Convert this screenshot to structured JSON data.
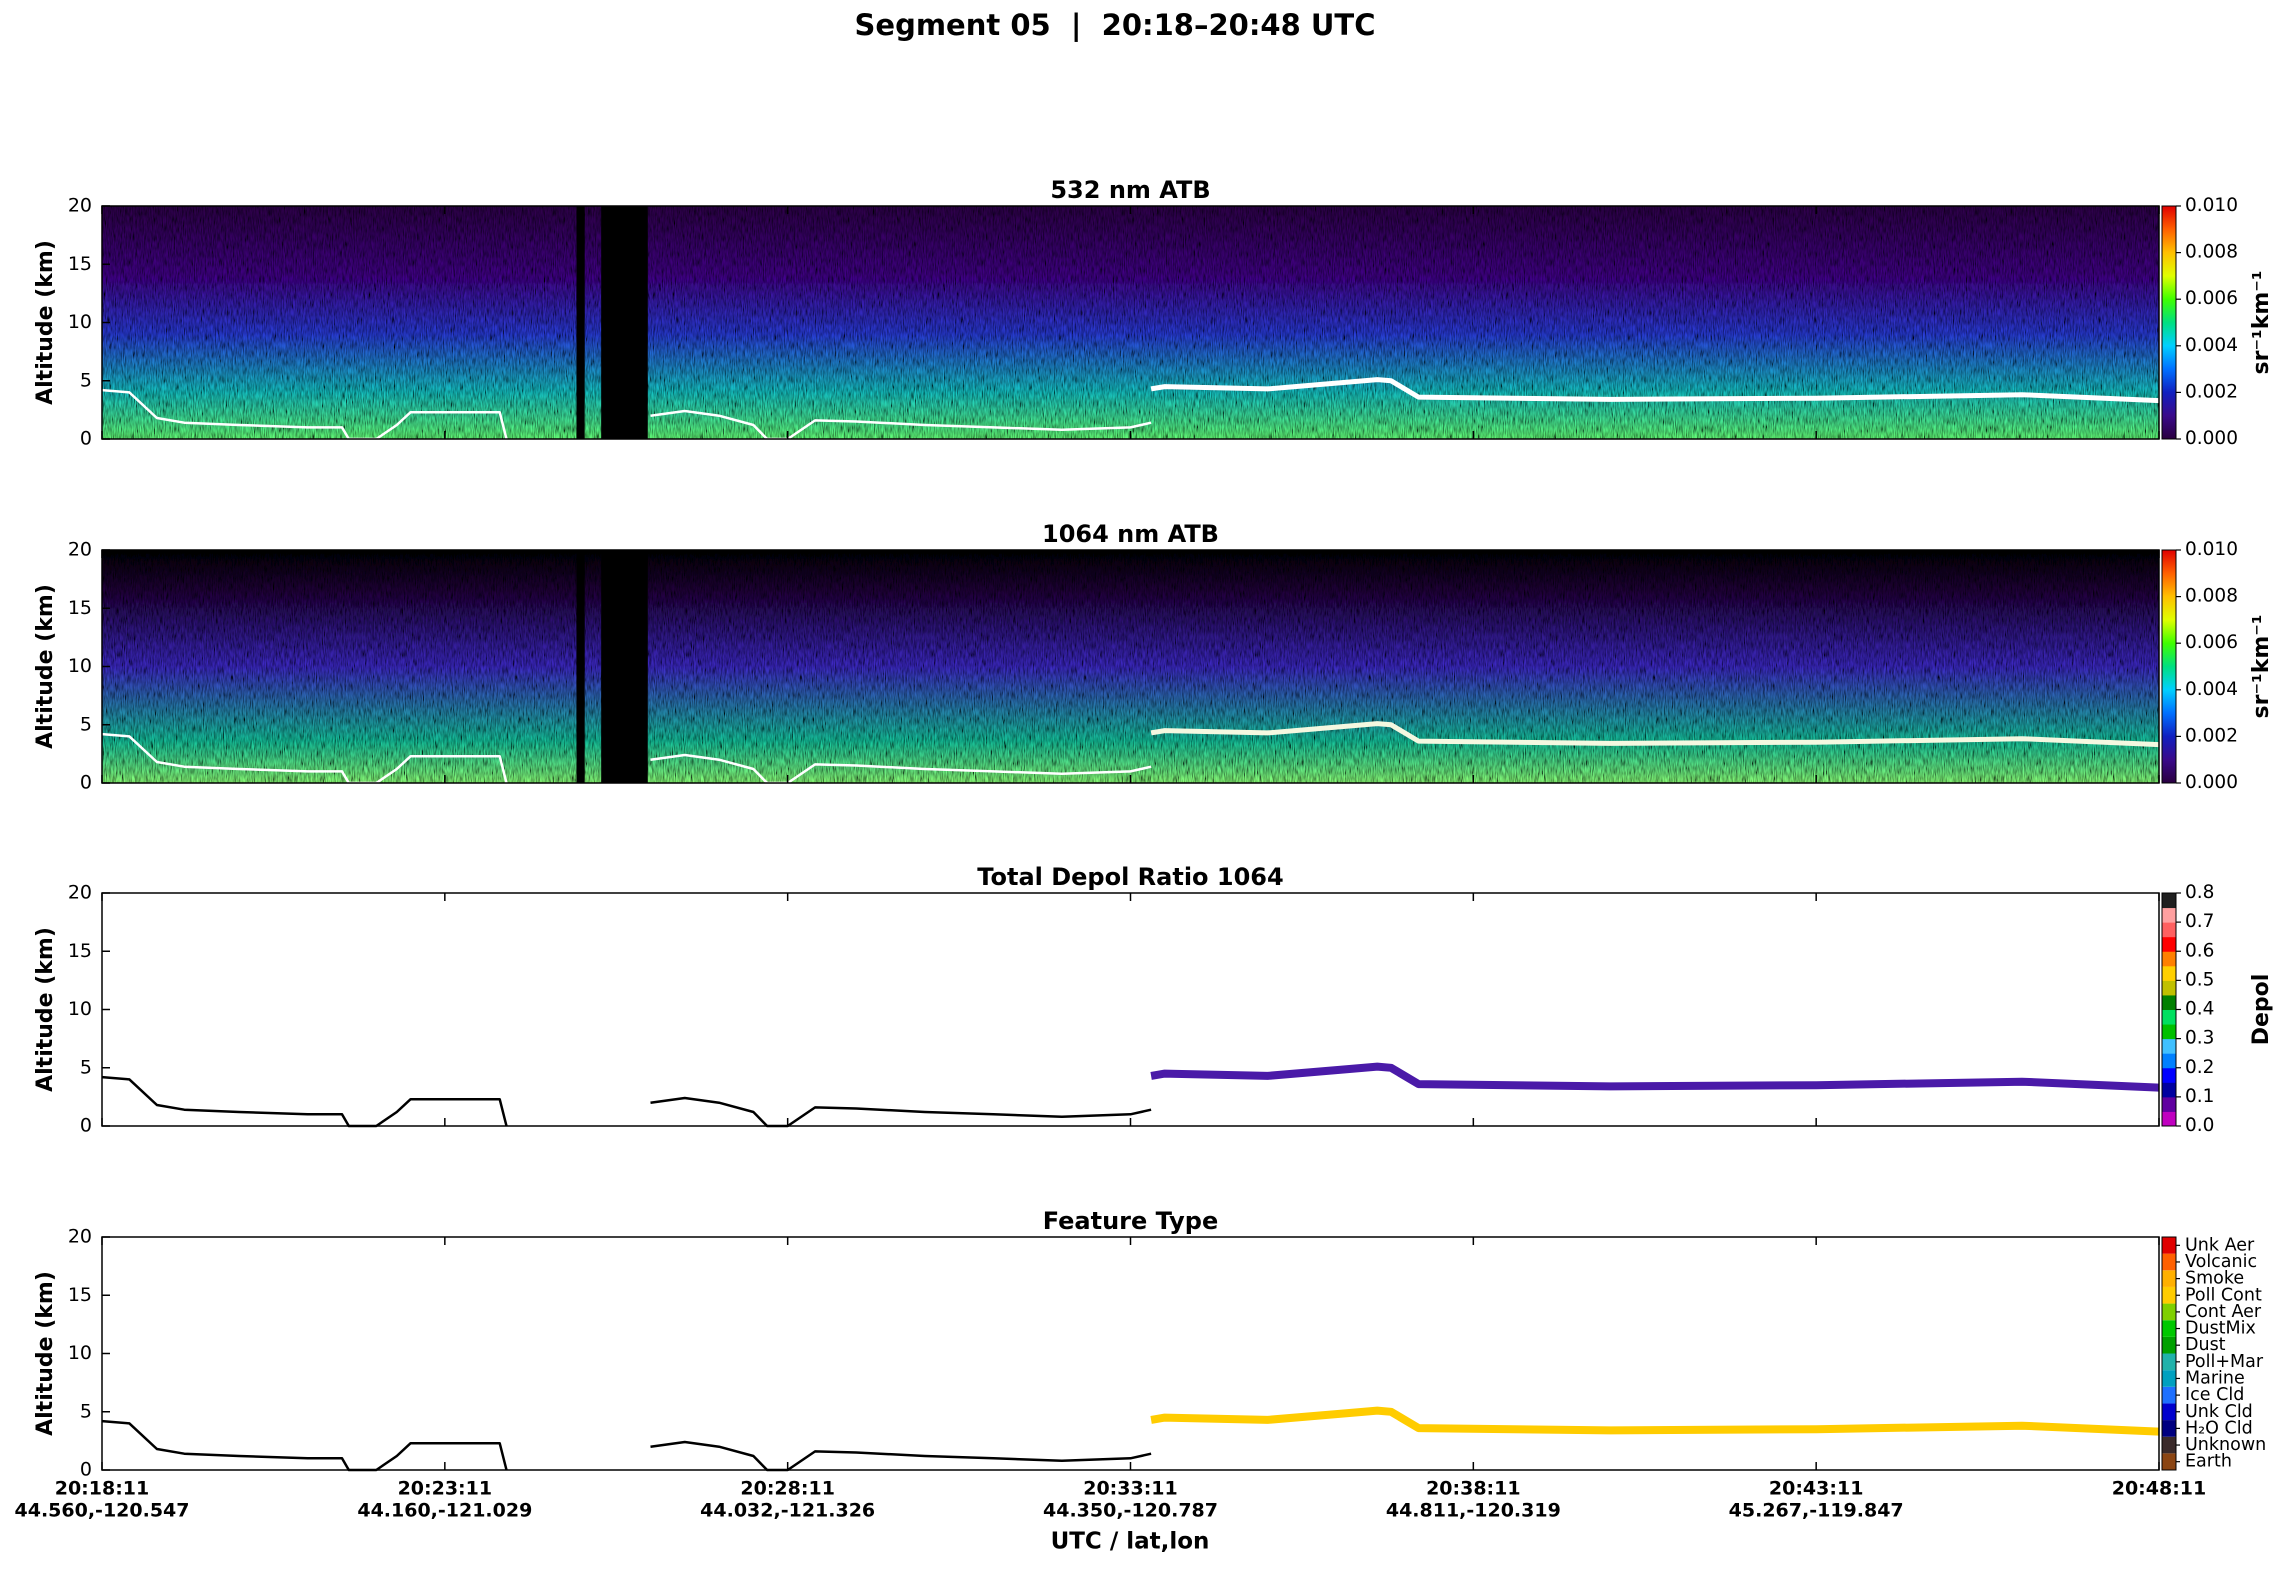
{
  "title": "Segment 05  |  20:18–20:48 UTC",
  "xlabel": "UTC / lat,lon",
  "chart_data": [
    {
      "type": "heatmap",
      "title": "532 nm ATB",
      "ylabel": "Altitude (km)",
      "xlim": [
        0,
        30
      ],
      "ylim": [
        0,
        20
      ],
      "yticks": [
        0,
        5,
        10,
        15,
        20
      ],
      "xticks": [
        0,
        5,
        10,
        15,
        20,
        25,
        30
      ],
      "no_data_x": [
        [
          6.92,
          7.04
        ],
        [
          7.28,
          7.96
        ]
      ],
      "surface": {
        "color": "#ffffff",
        "x": [
          0,
          0.4,
          0.8,
          1.2,
          2,
          3,
          3.5,
          3.6,
          4.0,
          4.3,
          4.5,
          5.8,
          5.9,
          7,
          8.0,
          8.5,
          9.0,
          9.5,
          9.7,
          10.0,
          10.4,
          11,
          12,
          13,
          14,
          15,
          15.3
        ],
        "y": [
          4.2,
          4.0,
          1.8,
          1.4,
          1.2,
          1.0,
          1.0,
          0,
          0,
          1.2,
          2.3,
          2.3,
          0,
          null,
          2.0,
          2.4,
          2.0,
          1.2,
          0,
          0,
          1.6,
          1.5,
          1.2,
          1.0,
          0.8,
          1.0,
          1.4
        ]
      },
      "layer": {
        "color": "#ffffff",
        "x": [
          15.3,
          15.5,
          17,
          18,
          18.6,
          18.8,
          19.2,
          22,
          25,
          28,
          30
        ],
        "y": [
          4.3,
          4.5,
          4.3,
          4.8,
          5.1,
          5.0,
          3.6,
          3.4,
          3.5,
          3.8,
          3.3
        ]
      },
      "colorbar": {
        "label": "sr⁻¹km⁻¹",
        "colormap": "continuous",
        "lim": [
          0,
          0.01
        ],
        "ticks": [
          {
            "value": 0,
            "label": "0.000"
          },
          0.002,
          0.004,
          0.006,
          0.008,
          {
            "value": 0.01,
            "label": "0.010"
          }
        ],
        "colors": [
          "#2a0040",
          "#3a0a8a",
          "#1020c0",
          "#0070ff",
          "#00d0ff",
          "#00e080",
          "#40ff00",
          "#e0ff00",
          "#ffc000",
          "#ff6000",
          "#e00000"
        ]
      }
    },
    {
      "type": "heatmap",
      "title": "1064 nm ATB",
      "ylabel": "Altitude (km)",
      "xlim": [
        0,
        30
      ],
      "ylim": [
        0,
        20
      ],
      "yticks": [
        0,
        5,
        10,
        15,
        20
      ],
      "xticks": [
        0,
        5,
        10,
        15,
        20,
        25,
        30
      ],
      "no_data_x": [
        [
          6.92,
          7.04
        ],
        [
          7.28,
          7.96
        ]
      ],
      "surface": {
        "color": "#ffffff",
        "x": [
          0,
          0.4,
          0.8,
          1.2,
          2,
          3,
          3.5,
          3.6,
          4.0,
          4.3,
          4.5,
          5.8,
          5.9,
          7,
          8.0,
          8.5,
          9.0,
          9.5,
          9.7,
          10.0,
          10.4,
          11,
          12,
          13,
          14,
          15,
          15.3
        ],
        "y": [
          4.2,
          4.0,
          1.8,
          1.4,
          1.2,
          1.0,
          1.0,
          0,
          0,
          1.2,
          2.3,
          2.3,
          0,
          null,
          2.0,
          2.4,
          2.0,
          1.2,
          0,
          0,
          1.6,
          1.5,
          1.2,
          1.0,
          0.8,
          1.0,
          1.4
        ]
      },
      "layer": {
        "color": "#f4f8e0",
        "x": [
          15.3,
          15.5,
          17,
          18,
          18.6,
          18.8,
          19.2,
          22,
          25,
          28,
          30
        ],
        "y": [
          4.3,
          4.5,
          4.3,
          4.8,
          5.1,
          5.0,
          3.6,
          3.4,
          3.5,
          3.8,
          3.3
        ]
      },
      "colorbar": {
        "label": "sr⁻¹km⁻¹",
        "colormap": "continuous",
        "lim": [
          0,
          0.01
        ],
        "ticks": [
          {
            "value": 0,
            "label": "0.000"
          },
          0.002,
          0.004,
          0.006,
          0.008,
          {
            "value": 0.01,
            "label": "0.010"
          }
        ],
        "colors": [
          "#2a0040",
          "#3a0a8a",
          "#1020c0",
          "#0070ff",
          "#00d0ff",
          "#00e080",
          "#40ff00",
          "#e0ff00",
          "#ffc000",
          "#ff6000",
          "#e00000"
        ]
      }
    },
    {
      "type": "mask",
      "title": "Total Depol Ratio 1064",
      "ylabel": "Altitude (km)",
      "xlim": [
        0,
        30
      ],
      "ylim": [
        0,
        20
      ],
      "yticks": [
        0,
        5,
        10,
        15,
        20
      ],
      "xticks": [
        0,
        5,
        10,
        15,
        20,
        25,
        30
      ],
      "surface": {
        "color": "#000000",
        "x": [
          0,
          0.4,
          0.8,
          1.2,
          2,
          3,
          3.5,
          3.6,
          4.0,
          4.3,
          4.5,
          5.8,
          5.9,
          7,
          8.0,
          8.5,
          9.0,
          9.5,
          9.7,
          10.0,
          10.4,
          11,
          12,
          13,
          14,
          15,
          15.3
        ],
        "y": [
          4.2,
          4.0,
          1.8,
          1.4,
          1.2,
          1.0,
          1.0,
          0,
          0,
          1.2,
          2.3,
          2.3,
          0,
          null,
          2.0,
          2.4,
          2.0,
          1.2,
          0,
          0,
          1.6,
          1.5,
          1.2,
          1.0,
          0.8,
          1.0,
          1.4
        ]
      },
      "layer": {
        "color": "#4a1aa8",
        "x": [
          15.3,
          15.5,
          17,
          18,
          18.6,
          18.8,
          19.2,
          22,
          25,
          28,
          30
        ],
        "y": [
          4.3,
          4.5,
          4.3,
          4.8,
          5.1,
          5.0,
          3.6,
          3.4,
          3.5,
          3.8,
          3.3
        ]
      },
      "colorbar": {
        "label": "Depol",
        "colormap": "discrete",
        "lim": [
          0,
          0.8
        ],
        "ticks": [
          {
            "value": 0,
            "label": "0.0"
          },
          0.1,
          0.2,
          0.3,
          0.4,
          0.5,
          0.6,
          0.7,
          0.8
        ],
        "colors": [
          "#c000c0",
          "#6000a0",
          "#0000a0",
          "#0000ff",
          "#0080ff",
          "#40c0ff",
          "#00c000",
          "#00e060",
          "#008000",
          "#c0c000",
          "#ffd000",
          "#ff8000",
          "#ff0000",
          "#ff6060",
          "#ffa0a0",
          "#202020"
        ]
      }
    },
    {
      "type": "mask",
      "title": "Feature Type",
      "ylabel": "Altitude (km)",
      "xlim": [
        0,
        30
      ],
      "ylim": [
        0,
        20
      ],
      "yticks": [
        0,
        5,
        10,
        15,
        20
      ],
      "xticks": [
        {
          "value": 0,
          "label": "20:18:11"
        },
        {
          "value": 5,
          "label": "20:23:11"
        },
        {
          "value": 10,
          "label": "20:28:11"
        },
        {
          "value": 15,
          "label": "20:33:11"
        },
        {
          "value": 20,
          "label": "20:38:11"
        },
        {
          "value": 25,
          "label": "20:43:11"
        },
        {
          "value": 30,
          "label": "20:48:11"
        }
      ],
      "xtick_latlon": [
        "44.560,-120.547",
        "44.160,-121.029",
        "44.032,-121.326",
        "44.350,-120.787",
        "44.811,-120.319",
        "45.267,-119.847",
        null
      ],
      "surface": {
        "color": "#000000",
        "x": [
          0,
          0.4,
          0.8,
          1.2,
          2,
          3,
          3.5,
          3.6,
          4.0,
          4.3,
          4.5,
          5.8,
          5.9,
          7,
          8.0,
          8.5,
          9.0,
          9.5,
          9.7,
          10.0,
          10.4,
          11,
          12,
          13,
          14,
          15,
          15.3
        ],
        "y": [
          4.2,
          4.0,
          1.8,
          1.4,
          1.2,
          1.0,
          1.0,
          0,
          0,
          1.2,
          2.3,
          2.3,
          0,
          null,
          2.0,
          2.4,
          2.0,
          1.2,
          0,
          0,
          1.6,
          1.5,
          1.2,
          1.0,
          0.8,
          1.0,
          1.4
        ]
      },
      "layer": {
        "color": "#ffcc00",
        "x": [
          15.3,
          15.5,
          17,
          18,
          18.6,
          18.8,
          19.2,
          22,
          25,
          28,
          30
        ],
        "y": [
          4.3,
          4.5,
          4.3,
          4.8,
          5.1,
          5.0,
          3.6,
          3.4,
          3.5,
          3.8,
          3.3
        ]
      },
      "colorbar": {
        "classes": [
          {
            "label": "Earth",
            "color": "#8b4513"
          },
          {
            "label": "Unknown",
            "color": "#3a2a2a"
          },
          {
            "label": "H₂O Cld",
            "color": "#000080"
          },
          {
            "label": "Unk Cld",
            "color": "#0000cd"
          },
          {
            "label": "Ice Cld",
            "color": "#1e70ff"
          },
          {
            "label": "Marine",
            "color": "#00a0c0"
          },
          {
            "label": "Poll+Mar",
            "color": "#20b2aa"
          },
          {
            "label": "Dust",
            "color": "#00a000"
          },
          {
            "label": "DustMix",
            "color": "#00c800"
          },
          {
            "label": "Cont Aer",
            "color": "#7fd000"
          },
          {
            "label": "Poll Cont",
            "color": "#ffcc00"
          },
          {
            "label": "Smoke",
            "color": "#ffb000"
          },
          {
            "label": "Volcanic",
            "color": "#ff6000"
          },
          {
            "label": "Unk Aer",
            "color": "#e00000"
          }
        ]
      }
    }
  ]
}
